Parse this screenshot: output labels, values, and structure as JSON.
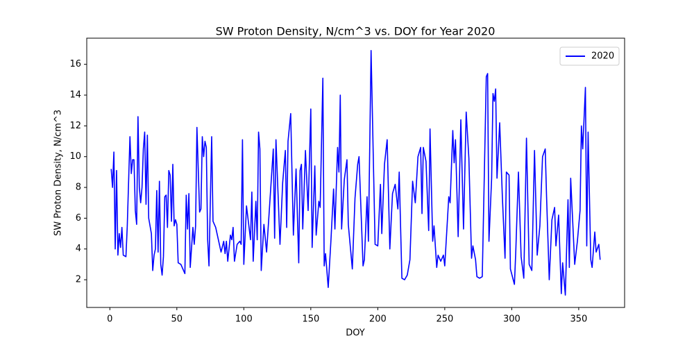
{
  "chart_data": {
    "type": "line",
    "title": "SW Proton Density, N/cm^3  vs. DOY for Year 2020",
    "x_label": "DOY",
    "y_label": "SW Proton Density, N/cm^3",
    "x": [
      1,
      2,
      3,
      4,
      5,
      6,
      7,
      8,
      9,
      10,
      12,
      13,
      15,
      16,
      17,
      18,
      19,
      20,
      21,
      22,
      23,
      24,
      25,
      26,
      27,
      28,
      29,
      30,
      31,
      32,
      33,
      34,
      35,
      36,
      37,
      38,
      39,
      40,
      41,
      42,
      43,
      44,
      45,
      46,
      47,
      48,
      49,
      50,
      51,
      53,
      56,
      57,
      58,
      59,
      60,
      62,
      63,
      64,
      65,
      67,
      68,
      69,
      70,
      71,
      72,
      73,
      74,
      76,
      77,
      79,
      81,
      83,
      85,
      86,
      87,
      88,
      90,
      91,
      92,
      93,
      95,
      97,
      98,
      99,
      100,
      102,
      105,
      106,
      107,
      109,
      110,
      111,
      112,
      113,
      115,
      117,
      122,
      123,
      124,
      127,
      129,
      131,
      132,
      133,
      135,
      137,
      139,
      141,
      142,
      143,
      144,
      146,
      148,
      150,
      151,
      153,
      154,
      156,
      157,
      159,
      160,
      161,
      163,
      165,
      167,
      168,
      170,
      171,
      172,
      173,
      175,
      177,
      178,
      181,
      183,
      185,
      186,
      189,
      190,
      192,
      193,
      195,
      198,
      200,
      202,
      203,
      205,
      207,
      209,
      211,
      213,
      215,
      216,
      218,
      220,
      222,
      224,
      226,
      228,
      230,
      232,
      233,
      234,
      236,
      238,
      239,
      241,
      242,
      244,
      245,
      247,
      249,
      250,
      253,
      254,
      256,
      257,
      258,
      260,
      262,
      264,
      266,
      268,
      270,
      271,
      273,
      274,
      276,
      278,
      281,
      282,
      283,
      285,
      286,
      287,
      288,
      289,
      291,
      293,
      295,
      296,
      298,
      299,
      302,
      303,
      305,
      307,
      309,
      311,
      313,
      315,
      317,
      319,
      321,
      323,
      325,
      326,
      328,
      330,
      332,
      333,
      335,
      337,
      338,
      340,
      342,
      343,
      344,
      347,
      349,
      351,
      352,
      353,
      355,
      356,
      357,
      359,
      360,
      362,
      363,
      365,
      366
    ],
    "series": [
      {
        "name": "2020",
        "color": "#0000ff",
        "values": [
          9.2,
          8.0,
          10.3,
          4.0,
          9.1,
          3.6,
          5.0,
          4.1,
          5.4,
          3.6,
          3.5,
          5.5,
          11.3,
          8.9,
          9.8,
          9.8,
          6.5,
          5.6,
          12.6,
          8.0,
          7.0,
          8.0,
          10.5,
          11.6,
          6.9,
          11.4,
          6.0,
          5.5,
          5.0,
          2.6,
          3.6,
          4.0,
          7.8,
          3.8,
          8.4,
          3.0,
          2.3,
          3.5,
          7.4,
          7.5,
          5.4,
          9.1,
          8.8,
          5.8,
          9.5,
          5.5,
          5.9,
          5.6,
          3.1,
          3.0,
          2.4,
          7.5,
          5.3,
          7.6,
          2.8,
          5.4,
          4.3,
          5.5,
          11.9,
          6.4,
          6.6,
          11.3,
          10.0,
          11.0,
          10.6,
          4.6,
          2.9,
          11.3,
          5.8,
          5.4,
          4.6,
          3.8,
          4.5,
          3.7,
          4.5,
          3.2,
          4.9,
          4.6,
          5.4,
          3.2,
          4.3,
          4.5,
          4.3,
          11.1,
          3.0,
          6.8,
          4.6,
          7.7,
          3.2,
          7.1,
          4.6,
          11.6,
          10.5,
          2.6,
          5.6,
          3.8,
          10.5,
          4.7,
          11.1,
          4.3,
          8.3,
          10.4,
          5.4,
          11.0,
          12.8,
          4.9,
          9.2,
          3.1,
          9.1,
          9.5,
          5.3,
          10.4,
          6.5,
          13.1,
          4.1,
          9.4,
          4.9,
          7.1,
          6.7,
          15.1,
          2.9,
          3.7,
          1.5,
          4.5,
          7.9,
          5.3,
          10.6,
          9.0,
          14.0,
          5.3,
          8.5,
          9.8,
          5.6,
          2.7,
          7.3,
          9.5,
          10.0,
          2.9,
          3.3,
          7.4,
          4.5,
          16.9,
          4.3,
          4.2,
          8.2,
          5.0,
          9.5,
          11.1,
          4.0,
          7.6,
          8.2,
          6.6,
          9.0,
          2.1,
          2.0,
          2.3,
          3.3,
          8.4,
          7.0,
          10.0,
          10.6,
          6.3,
          10.6,
          9.7,
          5.2,
          11.8,
          4.5,
          5.5,
          2.8,
          3.6,
          3.2,
          3.6,
          2.9,
          7.4,
          7.0,
          11.7,
          9.6,
          11.1,
          4.8,
          12.4,
          5.3,
          12.9,
          9.9,
          3.4,
          4.2,
          3.3,
          2.2,
          2.1,
          2.2,
          15.2,
          15.4,
          4.5,
          8.6,
          14.1,
          13.6,
          14.4,
          8.6,
          12.2,
          7.4,
          3.4,
          9.0,
          8.8,
          2.7,
          1.7,
          3.8,
          9.0,
          3.5,
          2.1,
          11.2,
          3.0,
          2.6,
          10.4,
          3.6,
          5.5,
          10.0,
          10.5,
          7.4,
          2.0,
          5.9,
          6.7,
          4.2,
          6.2,
          1.1,
          3.1,
          1.0,
          7.2,
          2.8,
          8.6,
          3.0,
          4.5,
          6.5,
          12.0,
          10.5,
          14.5,
          4.2,
          11.6,
          3.3,
          2.8,
          5.1,
          3.8,
          4.3,
          3.3
        ]
      }
    ],
    "xlim": [
      -17.25,
      384.25
    ],
    "xticks": [
      0,
      50,
      100,
      150,
      200,
      250,
      300,
      350
    ],
    "ylim": [
      0.2,
      17.7
    ],
    "yticks": [
      2,
      4,
      6,
      8,
      10,
      12,
      14,
      16
    ],
    "grid": false,
    "legend": "upper right"
  }
}
